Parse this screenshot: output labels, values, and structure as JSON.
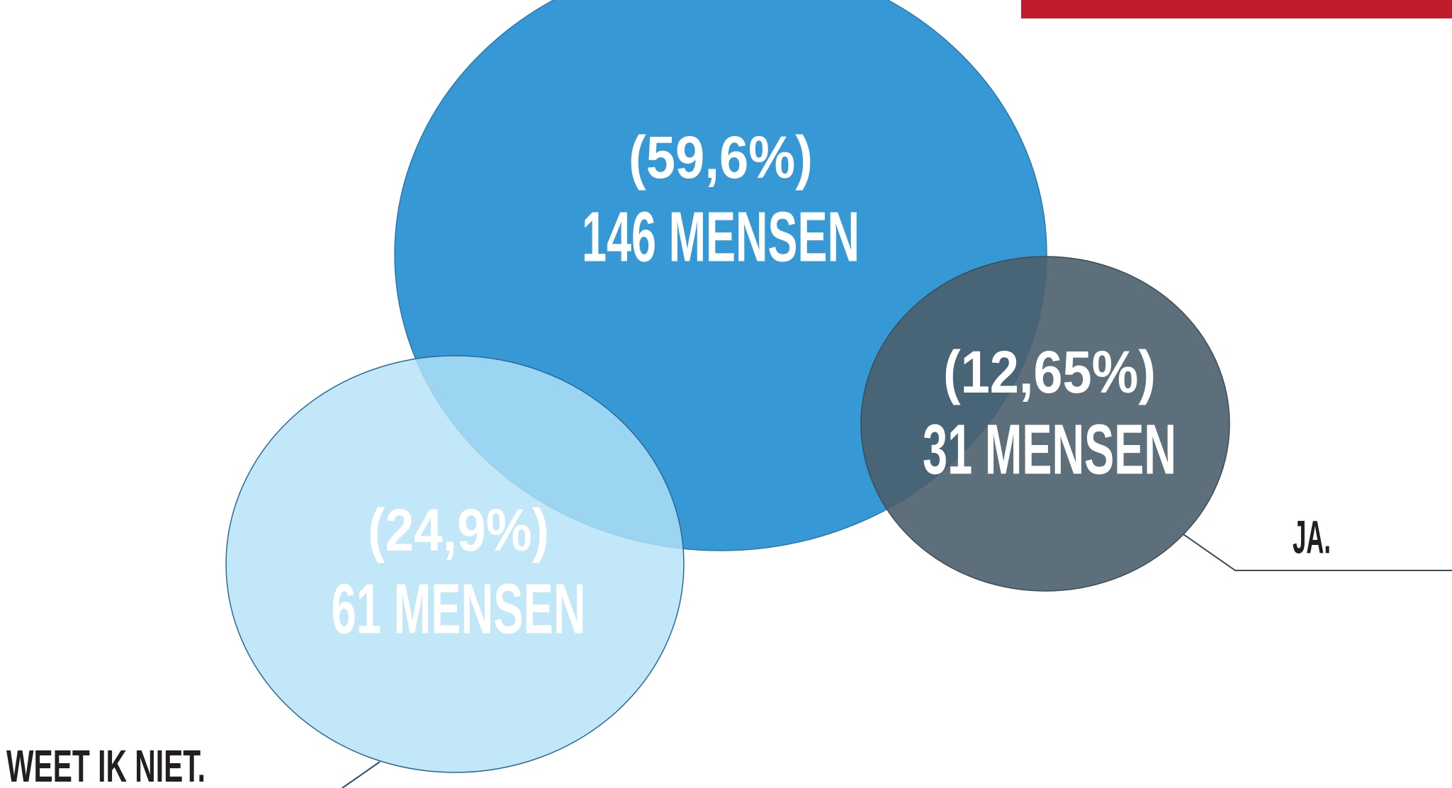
{
  "bubbles": [
    {
      "percent": "(59,6%)",
      "count": "146 MENSEN"
    },
    {
      "percent": "(12,65%)",
      "count": "31 MENSEN"
    },
    {
      "percent": "(24,9%)",
      "count": "61 MENSEN"
    }
  ],
  "labels": {
    "yes": "JA.",
    "dont_know": "WEET IK NIET."
  }
}
